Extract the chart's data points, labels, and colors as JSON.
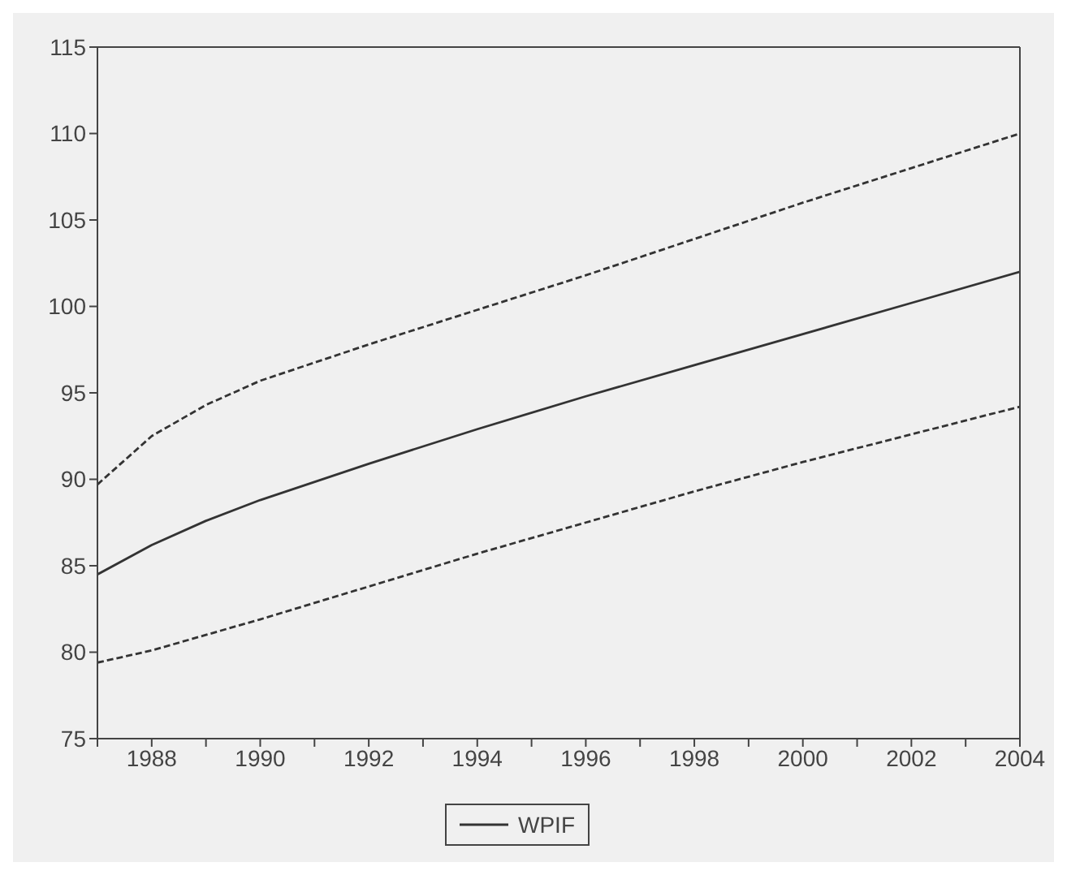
{
  "chart_data": {
    "type": "line",
    "x": [
      1987,
      1988,
      1989,
      1990,
      1992,
      1994,
      1996,
      1998,
      2000,
      2002,
      2004
    ],
    "series": [
      {
        "name": "WPIF",
        "color": "#333333",
        "line_style": "solid",
        "values": [
          84.5,
          86.2,
          87.6,
          88.8,
          90.9,
          92.9,
          94.8,
          96.6,
          98.4,
          100.2,
          102
        ]
      },
      {
        "color": "#333333",
        "line_style": "dashed",
        "values": [
          89.7,
          92.5,
          94.3,
          95.7,
          97.8,
          99.8,
          101.8,
          103.9,
          106,
          108,
          110
        ]
      },
      {
        "color": "#333333",
        "line_style": "dashed",
        "values": [
          79.4,
          80.1,
          81.0,
          81.9,
          83.8,
          85.7,
          87.5,
          89.3,
          91.0,
          92.6,
          94.2
        ]
      }
    ],
    "xlim": [
      1987,
      2004
    ],
    "xticks": [
      {
        "value": 1987,
        "label": null
      },
      1988,
      {
        "value": 1989,
        "label": null
      },
      1990,
      {
        "value": 1991,
        "label": null
      },
      1992,
      {
        "value": 1993,
        "label": null
      },
      1994,
      {
        "value": 1995,
        "label": null
      },
      1996,
      {
        "value": 1997,
        "label": null
      },
      1998,
      {
        "value": 1999,
        "label": null
      },
      2000,
      {
        "value": 2001,
        "label": null
      },
      2002,
      {
        "value": 2003,
        "label": null
      },
      2004
    ],
    "ylim": [
      75,
      115
    ],
    "yticks": [
      75,
      80,
      85,
      90,
      95,
      100,
      105,
      110,
      115
    ],
    "grid": false,
    "legend": "bottom",
    "marker": "none"
  }
}
